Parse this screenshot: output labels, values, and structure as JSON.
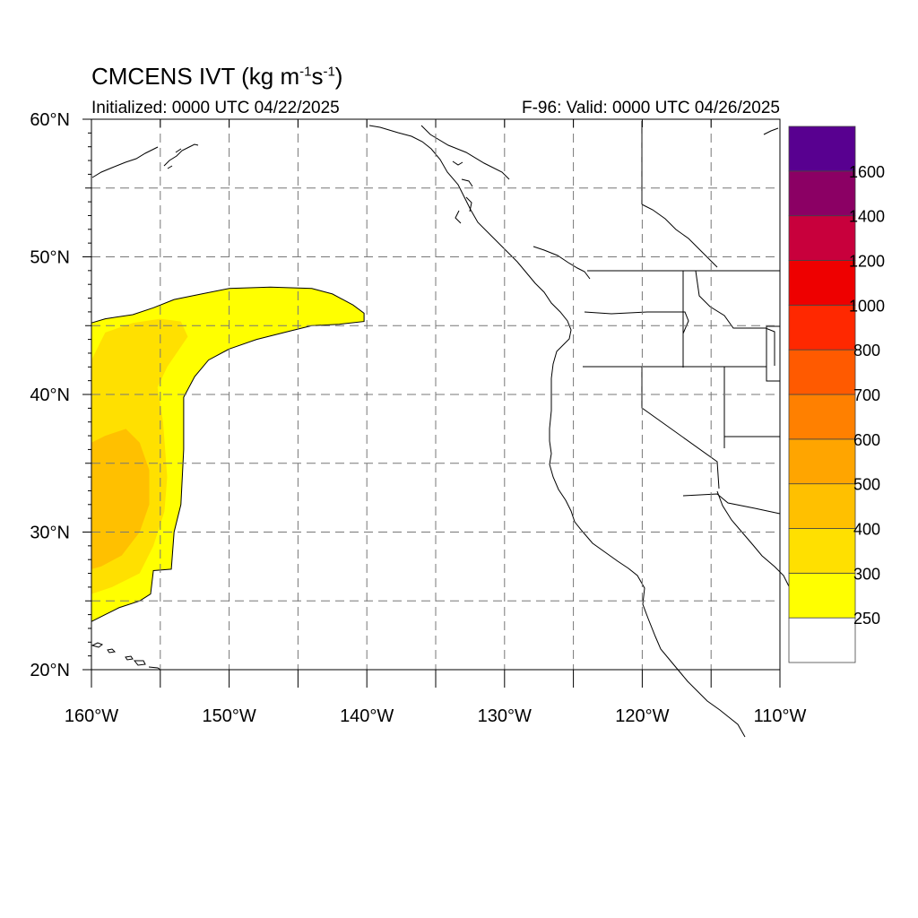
{
  "title": {
    "prefix": "CMCENS IVT (kg m",
    "exp1": "-1",
    "mid": "s",
    "exp2": "-1",
    "suffix": ")"
  },
  "initialized": "Initialized: 0000 UTC 04/22/2025",
  "valid": "F-96: Valid: 0000 UTC 04/26/2025",
  "map": {
    "lon_range": [
      -160,
      -110
    ],
    "lat_range": [
      20,
      60
    ],
    "x_ticks": [
      {
        "lon": -160,
        "label": "160°W"
      },
      {
        "lon": -150,
        "label": "150°W"
      },
      {
        "lon": -140,
        "label": "140°W"
      },
      {
        "lon": -130,
        "label": "130°W"
      },
      {
        "lon": -120,
        "label": "120°W"
      },
      {
        "lon": -110,
        "label": "110°W"
      }
    ],
    "y_ticks": [
      {
        "lat": 60,
        "label": "60°N"
      },
      {
        "lat": 50,
        "label": "50°N"
      },
      {
        "lat": 40,
        "label": "40°N"
      },
      {
        "lat": 30,
        "label": "30°N"
      },
      {
        "lat": 20,
        "label": "20°N"
      }
    ],
    "grid": true,
    "grid_lons": [
      -155,
      -150,
      -145,
      -140,
      -135,
      -130,
      -125,
      -120,
      -115
    ],
    "grid_lats": [
      25,
      35,
      45,
      50,
      55
    ]
  },
  "colorbar": {
    "levels": [
      250,
      300,
      400,
      500,
      600,
      700,
      800,
      1000,
      1200,
      1400,
      1600
    ],
    "labels": [
      "250",
      "300",
      "400",
      "500",
      "600",
      "700",
      "800",
      "1000",
      "1200",
      "1400",
      "1600"
    ],
    "colors": [
      "#ffffff",
      "#ffff00",
      "#ffe000",
      "#ffc000",
      "#ffa500",
      "#ff8000",
      "#ff5a00",
      "#ff2800",
      "#ee0000",
      "#c8003c",
      "#8b0064",
      "#580090"
    ]
  },
  "ivt_field": {
    "outer_polygon_lonlat": [
      [
        -160,
        45.2
      ],
      [
        -159,
        45.5
      ],
      [
        -157,
        45.8
      ],
      [
        -155.5,
        46.3
      ],
      [
        -154,
        46.9
      ],
      [
        -152,
        47.3
      ],
      [
        -150,
        47.7
      ],
      [
        -147,
        47.8
      ],
      [
        -144,
        47.7
      ],
      [
        -142.5,
        47.3
      ],
      [
        -141,
        46.5
      ],
      [
        -140.2,
        45.9
      ],
      [
        -140.2,
        45.3
      ],
      [
        -142,
        45.1
      ],
      [
        -144,
        45.0
      ],
      [
        -146,
        44.5
      ],
      [
        -148,
        44.0
      ],
      [
        -150,
        43.3
      ],
      [
        -151.5,
        42.5
      ],
      [
        -152.5,
        41.3
      ],
      [
        -153.3,
        39.8
      ],
      [
        -153.3,
        36.0
      ],
      [
        -153.5,
        32.0
      ],
      [
        -154,
        30.0
      ],
      [
        -154.2,
        27.3
      ],
      [
        -155.5,
        27.2
      ],
      [
        -155.7,
        25.5
      ],
      [
        -156.5,
        25.0
      ],
      [
        -158,
        24.5
      ],
      [
        -159,
        24.0
      ],
      [
        -160,
        23.5
      ]
    ],
    "level_300_polygon_lonlat": [
      [
        -160,
        42.5
      ],
      [
        -159,
        44.5
      ],
      [
        -157,
        45.2
      ],
      [
        -155,
        45.5
      ],
      [
        -153.5,
        45.3
      ],
      [
        -153,
        44.2
      ],
      [
        -154.5,
        42.0
      ],
      [
        -155.2,
        40.5
      ],
      [
        -154.8,
        38.0
      ],
      [
        -154.5,
        34.0
      ],
      [
        -154.7,
        31.5
      ],
      [
        -155.5,
        29.0
      ],
      [
        -156.5,
        27.0
      ],
      [
        -158.5,
        26.0
      ],
      [
        -160,
        25.5
      ]
    ],
    "level_400_polygon_lonlat": [
      [
        -160,
        36.5
      ],
      [
        -159,
        37.0
      ],
      [
        -157.5,
        37.5
      ],
      [
        -156.5,
        36.5
      ],
      [
        -155.8,
        34.5
      ],
      [
        -155.8,
        32.0
      ],
      [
        -156.5,
        30.0
      ],
      [
        -157.8,
        28.3
      ],
      [
        -159.3,
        27.5
      ],
      [
        -160,
        27.3
      ]
    ]
  }
}
